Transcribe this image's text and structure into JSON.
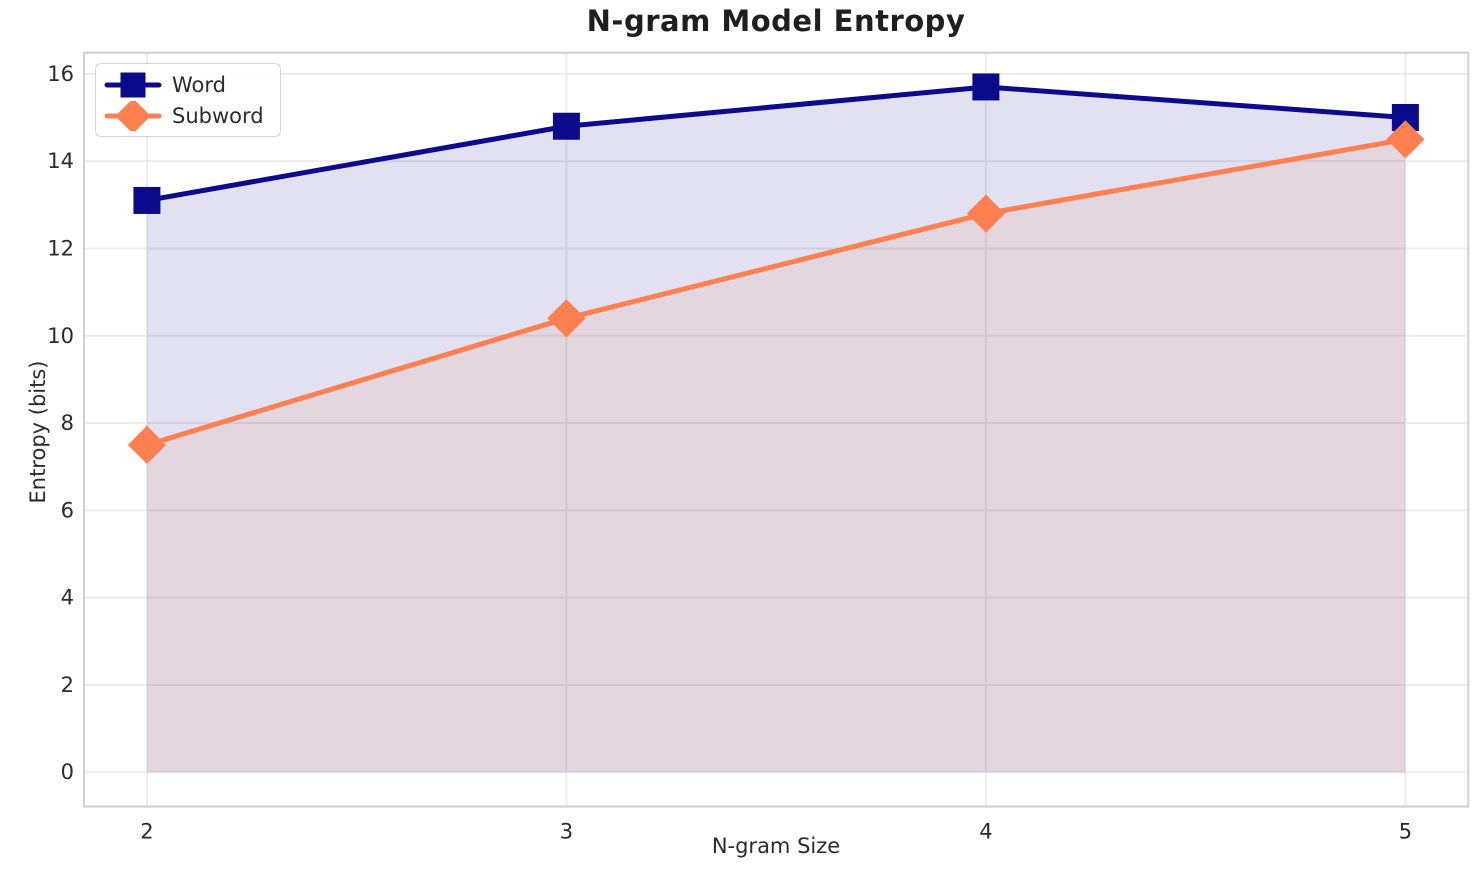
{
  "chart_data": {
    "type": "line",
    "title": "N-gram Model Entropy",
    "xlabel": "N-gram Size",
    "ylabel": "Entropy (bits)",
    "x": [
      2,
      3,
      4,
      5
    ],
    "series": [
      {
        "name": "Word",
        "values": [
          13.1,
          14.8,
          15.7,
          15.0
        ],
        "color": "#0b0b8b",
        "marker": "square",
        "fill_alpha": 0.12
      },
      {
        "name": "Subword",
        "values": [
          7.5,
          10.4,
          12.8,
          14.5
        ],
        "color": "#ff7f50",
        "marker": "diamond",
        "fill_alpha": 0.11
      }
    ],
    "area_fill_baseline": 0,
    "xticks": [
      "2",
      "3",
      "4",
      "5"
    ],
    "xtick_values": [
      2,
      3,
      4,
      5
    ],
    "yticks": [
      "0",
      "2",
      "4",
      "6",
      "8",
      "10",
      "12",
      "14",
      "16"
    ],
    "ytick_values": [
      0,
      2,
      4,
      6,
      8,
      10,
      12,
      14,
      16
    ],
    "xlim": [
      1.85,
      5.15
    ],
    "ylim": [
      -0.785,
      16.485
    ],
    "grid": true,
    "legend_position": "upper left",
    "colors": {
      "grid": "#ececec",
      "spine": "#d3d3d3",
      "tick_text": "#2b2b2b",
      "title_text": "#1f1f1f",
      "background": "#ffffff"
    }
  }
}
